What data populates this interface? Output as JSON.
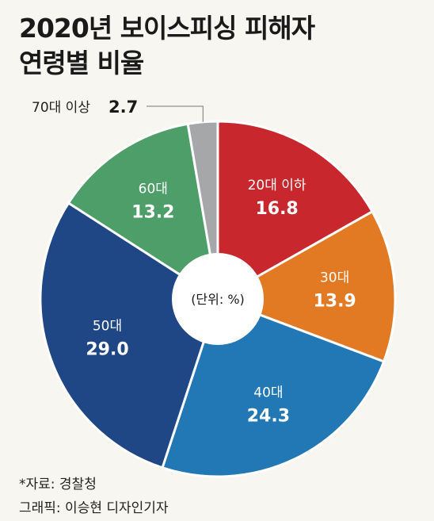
{
  "chart_data": {
    "type": "pie",
    "title_lines": [
      "2020년 보이스피싱 피해자",
      "연령별 비율"
    ],
    "center_label": "(단위: %)",
    "slices": [
      {
        "label": "20대 이하",
        "value": 16.8,
        "value_text": "16.8",
        "color": "#c8272d"
      },
      {
        "label": "30대",
        "value": 13.9,
        "value_text": "13.9",
        "color": "#e27a24"
      },
      {
        "label": "40대",
        "value": 24.3,
        "value_text": "24.3",
        "color": "#2178b4"
      },
      {
        "label": "50대",
        "value": 29.0,
        "value_text": "29.0",
        "color": "#1f4685"
      },
      {
        "label": "60대",
        "value": 13.2,
        "value_text": "13.2",
        "color": "#4e9e69"
      },
      {
        "label": "70대 이상",
        "value": 2.7,
        "value_text": "2.7",
        "color": "#a6a7a9"
      }
    ]
  },
  "source_note": "*자료: 경찰청",
  "credit_note": "그래픽: 이승현 디자인기자"
}
